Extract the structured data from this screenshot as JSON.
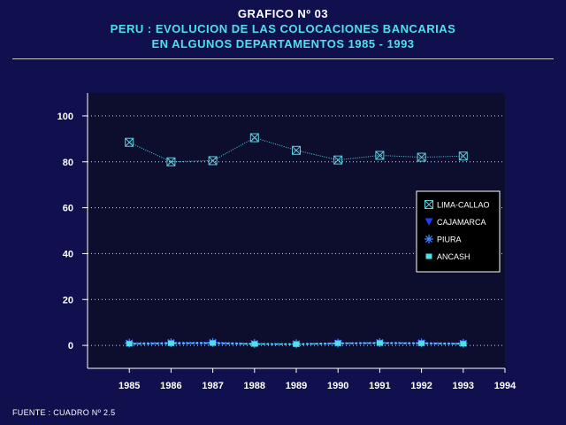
{
  "header": {
    "title_line1": "GRAFICO Nº 03",
    "title_line2": "PERU : EVOLUCION DE LAS COLOCACIONES BANCARIAS",
    "title_line3": "EN ALGUNOS DEPARTAMENTOS 1985 - 1993"
  },
  "footer": {
    "source": "FUENTE : CUADRO Nº 2.5"
  },
  "colors": {
    "background": "#10104e",
    "plot_background": "#0d0d2e",
    "axis": "#ffffff",
    "grid": "#ffffff",
    "lima": "#5fd0e0",
    "cajamarca": "#1c3fff",
    "piura": "#3f7fff",
    "ancash": "#4fe0e8",
    "legend_bg": "#000000"
  },
  "chart_data": {
    "type": "line",
    "title": "PERU : EVOLUCION DE LAS COLOCACIONES BANCARIAS EN ALGUNOS DEPARTAMENTOS 1985 - 1993",
    "xlabel": "",
    "ylabel": "",
    "x": [
      1985,
      1986,
      1987,
      1988,
      1989,
      1990,
      1991,
      1992,
      1993
    ],
    "xticks": [
      "1985",
      "1986",
      "1987",
      "1988",
      "1989",
      "1990",
      "1991",
      "1992",
      "1993",
      "1994"
    ],
    "xlim": [
      1984,
      1994
    ],
    "yticks": [
      "0",
      "20",
      "40",
      "60",
      "80",
      "100"
    ],
    "ylim": [
      -10,
      110
    ],
    "grid": true,
    "legend_position": "right",
    "series": [
      {
        "name": "LIMA-CALLAO",
        "marker": "boxed-x",
        "values": [
          88.5,
          80.0,
          80.5,
          90.5,
          85.0,
          80.8,
          82.8,
          82.0,
          82.5
        ]
      },
      {
        "name": "CAJAMARCA",
        "marker": "triangle-down",
        "values": [
          0.5,
          0.7,
          0.8,
          0.5,
          0.4,
          0.8,
          0.9,
          0.8,
          0.6
        ]
      },
      {
        "name": "PIURA",
        "marker": "asterisk",
        "values": [
          1.0,
          1.2,
          1.3,
          0.8,
          0.7,
          1.0,
          1.2,
          1.1,
          0.9
        ]
      },
      {
        "name": "ANCASH",
        "marker": "square",
        "values": [
          0.7,
          0.9,
          1.0,
          0.6,
          0.5,
          0.9,
          1.0,
          0.9,
          0.7
        ]
      }
    ]
  }
}
